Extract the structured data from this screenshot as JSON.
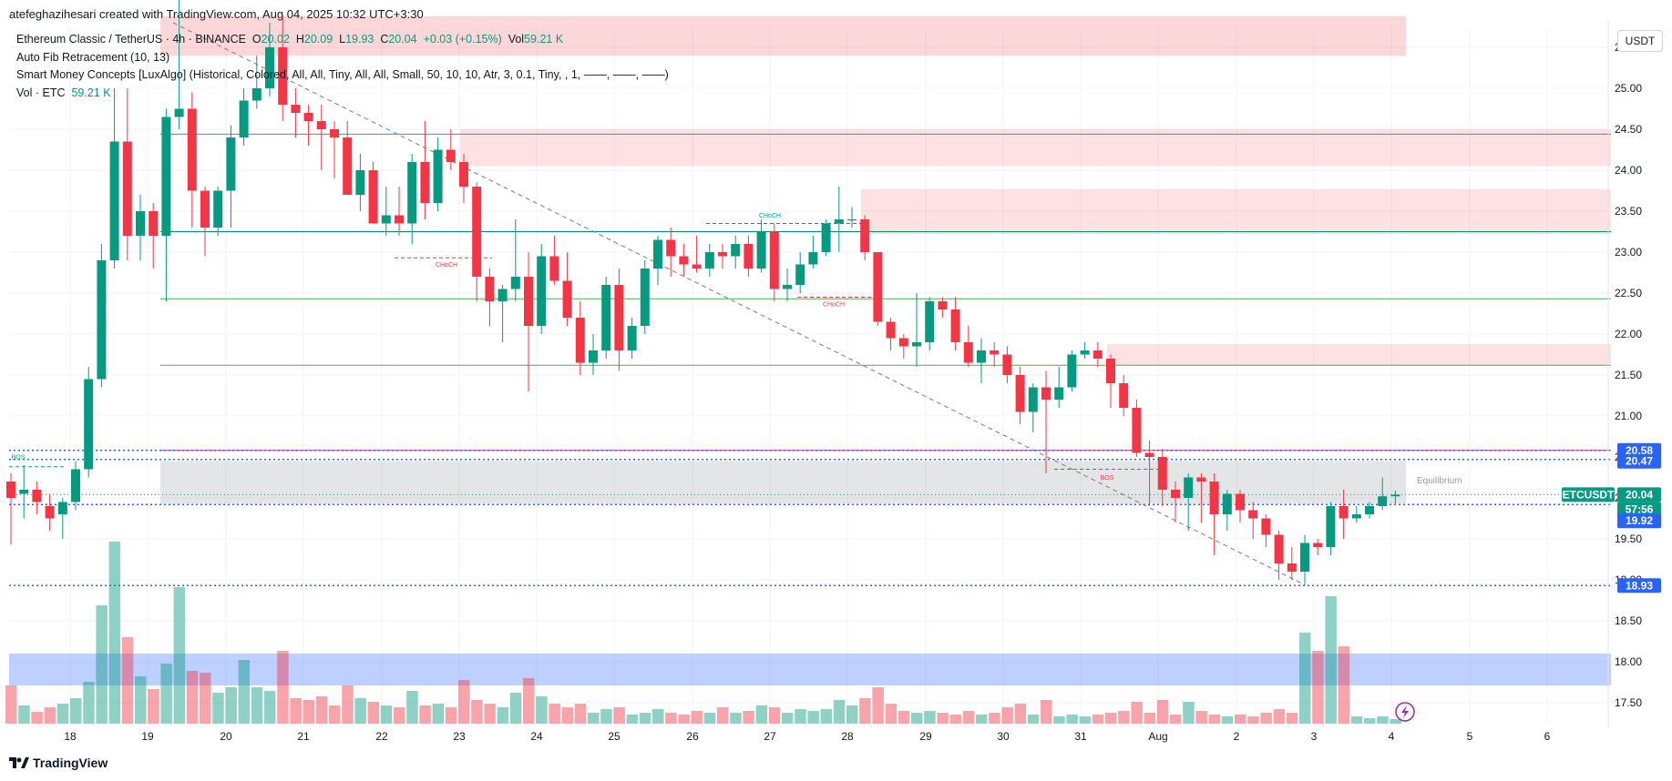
{
  "caption": "atefeghazihesari created with TradingView.com, Aug 04, 2025 10:32 UTC+3:30",
  "legend": {
    "title": "Ethereum Classic / TetherUS · 4h · BINANCE",
    "o_label": "O",
    "o": "20.02",
    "h_label": "H",
    "h": "20.09",
    "l_label": "L",
    "l": "19.93",
    "c_label": "C",
    "c": "20.04",
    "change": "+0.03 (+0.15%)",
    "vol_label": "Vol",
    "vol": "59.21 K",
    "fib": "Auto Fib Retracement (10, 13)",
    "smc": "Smart Money Concepts [LuxAlgo] (Historical, Colored, All, All, Tiny, All, All, Small, 50, 10, 10, Atr, 3, 0.1, Tiny, , 1, ——, ——, ——)",
    "vol_row_label": "Vol · ETC",
    "vol_row_value": "59.21 K"
  },
  "unit": "USDT",
  "branding": "TradingView",
  "colors": {
    "up": "#089981",
    "down": "#f23645",
    "blue_tag": "#2962ff",
    "fib_green": "#4caf50",
    "fib_red": "#f23645",
    "fib_teal": "#00897b",
    "fib_blue": "#2196f3"
  },
  "chart_data": {
    "type": "candlestick",
    "symbol": "ETCUSDT",
    "interval": "4h",
    "y_axis": {
      "ticks": [
        17.5,
        18.0,
        18.5,
        19.0,
        19.5,
        20.0,
        20.5,
        21.0,
        21.5,
        22.0,
        22.5,
        23.0,
        23.5,
        24.0,
        24.5,
        25.0,
        25.5
      ],
      "range": [
        17.3,
        25.8
      ],
      "position": "right"
    },
    "x_axis": {
      "labels": [
        "18",
        "19",
        "20",
        "21",
        "22",
        "23",
        "24",
        "25",
        "26",
        "27",
        "28",
        "29",
        "30",
        "31",
        "Aug",
        "2",
        "3",
        "4",
        "5",
        "6"
      ]
    },
    "price_tags": [
      {
        "value": "20.58",
        "color": "#2962ff"
      },
      {
        "value": "20.47",
        "color": "#2962ff"
      },
      {
        "value": "ETCUSDT",
        "color": "#089981"
      },
      {
        "value": "20.04",
        "color": "#089981"
      },
      {
        "value": "57:56",
        "color": "#089981"
      },
      {
        "value": "19.92",
        "color": "#2962ff"
      },
      {
        "value": "18.93",
        "color": "#2962ff"
      }
    ],
    "annotations": [
      "CHoCH",
      "CHoCH",
      "CHoCH",
      "BOS",
      "BOS",
      "Equilibrium"
    ],
    "fib_levels": [
      24.44,
      23.25,
      22.43,
      21.62,
      20.58
    ],
    "candles": [
      {
        "o": 20.2,
        "h": 20.3,
        "l": 19.43,
        "c": 20.0,
        "v": 42
      },
      {
        "o": 20.05,
        "h": 20.4,
        "l": 19.75,
        "c": 20.1,
        "v": 20
      },
      {
        "o": 20.1,
        "h": 20.2,
        "l": 19.8,
        "c": 19.95,
        "v": 13
      },
      {
        "o": 19.9,
        "h": 20.05,
        "l": 19.6,
        "c": 19.75,
        "v": 18
      },
      {
        "o": 19.8,
        "h": 20.0,
        "l": 19.5,
        "c": 19.95,
        "v": 22
      },
      {
        "o": 19.95,
        "h": 20.45,
        "l": 19.85,
        "c": 20.35,
        "v": 28
      },
      {
        "o": 20.35,
        "h": 21.6,
        "l": 20.25,
        "c": 21.45,
        "v": 46
      },
      {
        "o": 21.45,
        "h": 23.1,
        "l": 21.35,
        "c": 22.9,
        "v": 130
      },
      {
        "o": 22.9,
        "h": 25.0,
        "l": 22.8,
        "c": 24.35,
        "v": 200
      },
      {
        "o": 24.35,
        "h": 25.0,
        "l": 22.9,
        "c": 23.2,
        "v": 95
      },
      {
        "o": 23.2,
        "h": 23.7,
        "l": 22.9,
        "c": 23.5,
        "v": 52
      },
      {
        "o": 23.5,
        "h": 23.6,
        "l": 22.8,
        "c": 23.2,
        "v": 38
      },
      {
        "o": 23.2,
        "h": 24.75,
        "l": 22.4,
        "c": 24.65,
        "v": 66
      },
      {
        "o": 24.65,
        "h": 26.1,
        "l": 24.5,
        "c": 24.75,
        "v": 150
      },
      {
        "o": 24.75,
        "h": 24.95,
        "l": 23.3,
        "c": 23.75,
        "v": 58
      },
      {
        "o": 23.75,
        "h": 23.8,
        "l": 22.95,
        "c": 23.3,
        "v": 56
      },
      {
        "o": 23.3,
        "h": 23.8,
        "l": 23.2,
        "c": 23.75,
        "v": 34
      },
      {
        "o": 23.75,
        "h": 24.55,
        "l": 23.3,
        "c": 24.4,
        "v": 40
      },
      {
        "o": 24.4,
        "h": 25.0,
        "l": 24.3,
        "c": 24.85,
        "v": 70
      },
      {
        "o": 24.85,
        "h": 25.4,
        "l": 24.75,
        "c": 25.0,
        "v": 40
      },
      {
        "o": 25.0,
        "h": 25.8,
        "l": 24.9,
        "c": 25.5,
        "v": 36
      },
      {
        "o": 25.5,
        "h": 25.9,
        "l": 24.6,
        "c": 24.8,
        "v": 80
      },
      {
        "o": 24.8,
        "h": 25.0,
        "l": 24.4,
        "c": 24.7,
        "v": 28
      },
      {
        "o": 24.7,
        "h": 24.8,
        "l": 24.3,
        "c": 24.6,
        "v": 26
      },
      {
        "o": 24.6,
        "h": 24.8,
        "l": 24.0,
        "c": 24.5,
        "v": 30
      },
      {
        "o": 24.5,
        "h": 24.6,
        "l": 23.9,
        "c": 24.4,
        "v": 20
      },
      {
        "o": 24.4,
        "h": 24.6,
        "l": 23.7,
        "c": 23.7,
        "v": 42
      },
      {
        "o": 23.7,
        "h": 24.2,
        "l": 23.5,
        "c": 24.0,
        "v": 28
      },
      {
        "o": 24.0,
        "h": 24.1,
        "l": 23.4,
        "c": 23.35,
        "v": 24
      },
      {
        "o": 23.35,
        "h": 23.8,
        "l": 23.2,
        "c": 23.45,
        "v": 20
      },
      {
        "o": 23.45,
        "h": 23.8,
        "l": 23.2,
        "c": 23.35,
        "v": 18
      },
      {
        "o": 23.35,
        "h": 24.2,
        "l": 23.1,
        "c": 24.1,
        "v": 36
      },
      {
        "o": 24.1,
        "h": 24.6,
        "l": 23.4,
        "c": 23.6,
        "v": 20
      },
      {
        "o": 23.6,
        "h": 24.4,
        "l": 23.5,
        "c": 24.25,
        "v": 22
      },
      {
        "o": 24.25,
        "h": 24.5,
        "l": 24.0,
        "c": 24.1,
        "v": 18
      },
      {
        "o": 24.1,
        "h": 24.2,
        "l": 23.6,
        "c": 23.8,
        "v": 48
      },
      {
        "o": 23.8,
        "h": 23.85,
        "l": 22.4,
        "c": 22.7,
        "v": 26
      },
      {
        "o": 22.7,
        "h": 22.8,
        "l": 22.1,
        "c": 22.4,
        "v": 22
      },
      {
        "o": 22.4,
        "h": 22.6,
        "l": 21.9,
        "c": 22.55,
        "v": 18
      },
      {
        "o": 22.55,
        "h": 23.4,
        "l": 22.4,
        "c": 22.7,
        "v": 34
      },
      {
        "o": 22.7,
        "h": 23.0,
        "l": 21.3,
        "c": 22.1,
        "v": 50
      },
      {
        "o": 22.1,
        "h": 23.1,
        "l": 22.0,
        "c": 22.95,
        "v": 30
      },
      {
        "o": 22.95,
        "h": 23.2,
        "l": 22.6,
        "c": 22.65,
        "v": 22
      },
      {
        "o": 22.65,
        "h": 23.0,
        "l": 22.1,
        "c": 22.2,
        "v": 18
      },
      {
        "o": 22.2,
        "h": 22.4,
        "l": 21.5,
        "c": 21.65,
        "v": 22
      },
      {
        "o": 21.65,
        "h": 22.0,
        "l": 21.5,
        "c": 21.8,
        "v": 12
      },
      {
        "o": 21.8,
        "h": 22.7,
        "l": 21.7,
        "c": 22.6,
        "v": 16
      },
      {
        "o": 22.6,
        "h": 22.8,
        "l": 21.55,
        "c": 21.8,
        "v": 18
      },
      {
        "o": 21.8,
        "h": 22.2,
        "l": 21.7,
        "c": 22.1,
        "v": 10
      },
      {
        "o": 22.1,
        "h": 22.9,
        "l": 22.0,
        "c": 22.8,
        "v": 12
      },
      {
        "o": 22.8,
        "h": 23.2,
        "l": 22.6,
        "c": 23.15,
        "v": 16
      },
      {
        "o": 23.15,
        "h": 23.3,
        "l": 22.7,
        "c": 22.95,
        "v": 12
      },
      {
        "o": 22.95,
        "h": 23.1,
        "l": 22.7,
        "c": 22.85,
        "v": 10
      },
      {
        "o": 22.85,
        "h": 23.2,
        "l": 22.75,
        "c": 22.8,
        "v": 14
      },
      {
        "o": 22.8,
        "h": 23.1,
        "l": 22.7,
        "c": 23.0,
        "v": 12
      },
      {
        "o": 23.0,
        "h": 23.1,
        "l": 22.8,
        "c": 22.95,
        "v": 18
      },
      {
        "o": 22.95,
        "h": 23.2,
        "l": 22.8,
        "c": 23.1,
        "v": 12
      },
      {
        "o": 23.1,
        "h": 23.2,
        "l": 22.7,
        "c": 22.8,
        "v": 14
      },
      {
        "o": 22.8,
        "h": 23.4,
        "l": 22.75,
        "c": 23.25,
        "v": 20
      },
      {
        "o": 23.25,
        "h": 23.35,
        "l": 22.4,
        "c": 22.55,
        "v": 18
      },
      {
        "o": 22.55,
        "h": 22.8,
        "l": 22.4,
        "c": 22.6,
        "v": 12
      },
      {
        "o": 22.6,
        "h": 23.0,
        "l": 22.5,
        "c": 22.85,
        "v": 16
      },
      {
        "o": 22.85,
        "h": 23.2,
        "l": 22.8,
        "c": 23.0,
        "v": 14
      },
      {
        "o": 23.0,
        "h": 23.4,
        "l": 22.95,
        "c": 23.35,
        "v": 16
      },
      {
        "o": 23.35,
        "h": 23.8,
        "l": 23.0,
        "c": 23.4,
        "v": 26
      },
      {
        "o": 23.4,
        "h": 23.55,
        "l": 23.3,
        "c": 23.4,
        "v": 20
      },
      {
        "o": 23.4,
        "h": 23.45,
        "l": 22.9,
        "c": 23.0,
        "v": 28
      },
      {
        "o": 23.0,
        "h": 23.0,
        "l": 22.1,
        "c": 22.15,
        "v": 40
      },
      {
        "o": 22.15,
        "h": 22.2,
        "l": 21.8,
        "c": 21.95,
        "v": 22
      },
      {
        "o": 21.95,
        "h": 22.0,
        "l": 21.7,
        "c": 21.85,
        "v": 14
      },
      {
        "o": 21.85,
        "h": 22.5,
        "l": 21.6,
        "c": 21.9,
        "v": 12
      },
      {
        "o": 21.9,
        "h": 22.45,
        "l": 21.8,
        "c": 22.4,
        "v": 14
      },
      {
        "o": 22.4,
        "h": 22.45,
        "l": 22.2,
        "c": 22.3,
        "v": 12
      },
      {
        "o": 22.3,
        "h": 22.45,
        "l": 21.8,
        "c": 21.9,
        "v": 10
      },
      {
        "o": 21.9,
        "h": 22.1,
        "l": 21.6,
        "c": 21.65,
        "v": 14
      },
      {
        "o": 21.65,
        "h": 21.95,
        "l": 21.4,
        "c": 21.8,
        "v": 10
      },
      {
        "o": 21.8,
        "h": 21.9,
        "l": 21.6,
        "c": 21.75,
        "v": 12
      },
      {
        "o": 21.75,
        "h": 21.85,
        "l": 21.4,
        "c": 21.5,
        "v": 18
      },
      {
        "o": 21.5,
        "h": 21.6,
        "l": 20.9,
        "c": 21.05,
        "v": 22
      },
      {
        "o": 21.05,
        "h": 21.4,
        "l": 20.8,
        "c": 21.35,
        "v": 10
      },
      {
        "o": 21.35,
        "h": 21.55,
        "l": 20.3,
        "c": 21.2,
        "v": 26
      },
      {
        "o": 21.2,
        "h": 21.6,
        "l": 21.1,
        "c": 21.35,
        "v": 8
      },
      {
        "o": 21.35,
        "h": 21.8,
        "l": 21.3,
        "c": 21.75,
        "v": 10
      },
      {
        "o": 21.75,
        "h": 21.9,
        "l": 21.7,
        "c": 21.8,
        "v": 8
      },
      {
        "o": 21.8,
        "h": 21.9,
        "l": 21.6,
        "c": 21.7,
        "v": 10
      },
      {
        "o": 21.7,
        "h": 21.75,
        "l": 21.1,
        "c": 21.4,
        "v": 12
      },
      {
        "o": 21.4,
        "h": 21.5,
        "l": 21.0,
        "c": 21.1,
        "v": 14
      },
      {
        "o": 21.1,
        "h": 21.2,
        "l": 20.5,
        "c": 20.55,
        "v": 24
      },
      {
        "o": 20.55,
        "h": 20.7,
        "l": 19.9,
        "c": 20.5,
        "v": 12
      },
      {
        "o": 20.5,
        "h": 20.6,
        "l": 19.9,
        "c": 20.1,
        "v": 26
      },
      {
        "o": 20.1,
        "h": 20.2,
        "l": 19.7,
        "c": 20.0,
        "v": 10
      },
      {
        "o": 20.0,
        "h": 20.3,
        "l": 19.6,
        "c": 20.25,
        "v": 24
      },
      {
        "o": 20.25,
        "h": 20.3,
        "l": 19.7,
        "c": 20.2,
        "v": 14
      },
      {
        "o": 20.2,
        "h": 20.3,
        "l": 19.3,
        "c": 19.8,
        "v": 10
      },
      {
        "o": 19.8,
        "h": 20.1,
        "l": 19.6,
        "c": 20.05,
        "v": 8
      },
      {
        "o": 20.05,
        "h": 20.1,
        "l": 19.7,
        "c": 19.85,
        "v": 10
      },
      {
        "o": 19.85,
        "h": 19.95,
        "l": 19.5,
        "c": 19.75,
        "v": 8
      },
      {
        "o": 19.75,
        "h": 19.8,
        "l": 19.4,
        "c": 19.55,
        "v": 12
      },
      {
        "o": 19.55,
        "h": 19.6,
        "l": 19.0,
        "c": 19.2,
        "v": 16
      },
      {
        "o": 19.2,
        "h": 19.4,
        "l": 19.0,
        "c": 19.1,
        "v": 12
      },
      {
        "o": 19.1,
        "h": 19.55,
        "l": 18.93,
        "c": 19.45,
        "v": 100
      },
      {
        "o": 19.45,
        "h": 19.5,
        "l": 19.3,
        "c": 19.4,
        "v": 80
      },
      {
        "o": 19.4,
        "h": 19.95,
        "l": 19.3,
        "c": 19.9,
        "v": 140
      },
      {
        "o": 19.9,
        "h": 20.1,
        "l": 19.5,
        "c": 19.75,
        "v": 85
      },
      {
        "o": 19.75,
        "h": 19.9,
        "l": 19.7,
        "c": 19.8,
        "v": 8
      },
      {
        "o": 19.8,
        "h": 19.95,
        "l": 19.75,
        "c": 19.9,
        "v": 6
      },
      {
        "o": 19.9,
        "h": 20.25,
        "l": 19.85,
        "c": 20.02,
        "v": 8
      },
      {
        "o": 20.02,
        "h": 20.09,
        "l": 19.93,
        "c": 20.04,
        "v": 5
      }
    ]
  }
}
